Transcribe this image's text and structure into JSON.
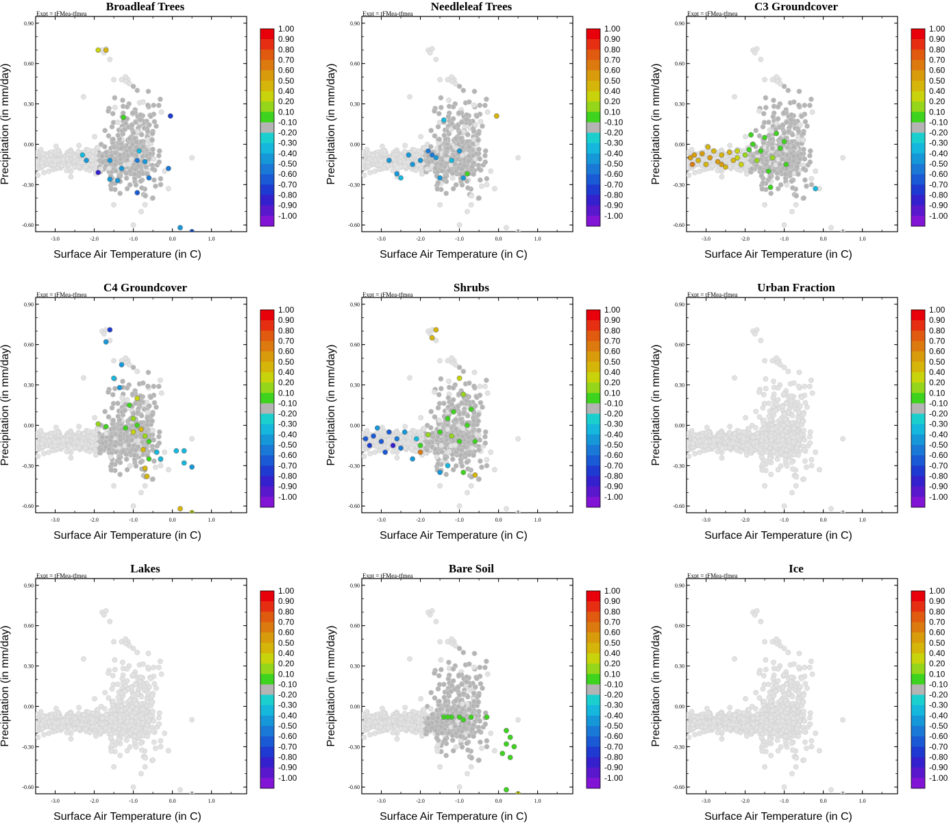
{
  "figure": {
    "experiment_label": "Expt = tFMea-tfmea",
    "xlabel": "Surface Air Temperature (in C)",
    "ylabel": "Precipitation (in mm/day)",
    "xticks": [
      "-3.0",
      "-2.0",
      "-1.0",
      "0.0",
      "1.0"
    ],
    "yticks": [
      "0.90",
      "0.60",
      "0.30",
      "0.00",
      "-0.30",
      "-0.60"
    ]
  },
  "colorbar": {
    "labels": [
      "1.00",
      "0.90",
      "0.80",
      "0.70",
      "0.60",
      "0.50",
      "0.40",
      "0.20",
      "0.10",
      "-0.10",
      "-0.20",
      "-0.30",
      "-0.40",
      "-0.50",
      "-0.60",
      "-0.70",
      "-0.80",
      "-0.90",
      "-1.00"
    ],
    "colors": [
      "#e8000b",
      "#e62e12",
      "#e05a10",
      "#dc7a10",
      "#d89b0c",
      "#d6b50a",
      "#c8d30c",
      "#95d61a",
      "#3ed31e",
      "#b4b4b4",
      "#1ccfcf",
      "#15b7dc",
      "#1597d8",
      "#1a79d6",
      "#1a5ad4",
      "#1e3ad0",
      "#3420cc",
      "#5a18cc",
      "#8214d6"
    ]
  },
  "palette": {
    "background_point": "#e2e2e2",
    "mid_point": "#b4b4b4"
  },
  "chart_data": [
    {
      "type": "scatter",
      "title": "Broadleaf Trees",
      "xlim": [
        -3.5,
        1.9
      ],
      "ylim": [
        -0.65,
        0.95
      ],
      "colored": [
        [
          -1.9,
          0.7,
          0.3
        ],
        [
          -1.7,
          0.7,
          0.4
        ],
        [
          -1.25,
          0.2,
          0.15
        ],
        [
          -0.05,
          0.21,
          -0.65
        ],
        [
          -2.3,
          -0.08,
          -0.25
        ],
        [
          -2.2,
          -0.12,
          -0.3
        ],
        [
          -1.6,
          -0.12,
          -0.3
        ],
        [
          -1.3,
          -0.18,
          -0.35
        ],
        [
          -1.6,
          -0.26,
          -0.3
        ],
        [
          -1.4,
          -0.27,
          -0.35
        ],
        [
          -0.9,
          -0.12,
          -0.4
        ],
        [
          -0.7,
          -0.13,
          -0.3
        ],
        [
          -0.6,
          -0.25,
          -0.45
        ],
        [
          -0.9,
          -0.36,
          -0.5
        ],
        [
          -0.1,
          -0.18,
          -0.4
        ],
        [
          -1.9,
          -0.21,
          -0.75
        ],
        [
          0.2,
          -0.62,
          -0.35
        ],
        [
          0.5,
          -0.65,
          -0.5
        ],
        [
          -0.85,
          -0.05,
          -0.25
        ]
      ]
    },
    {
      "type": "scatter",
      "title": "Needleleaf Trees",
      "xlim": [
        -3.5,
        1.9
      ],
      "ylim": [
        -0.65,
        0.95
      ],
      "colored": [
        [
          -0.05,
          0.21,
          0.4
        ],
        [
          -2.6,
          -0.22,
          -0.3
        ],
        [
          -2.5,
          -0.25,
          -0.25
        ],
        [
          -2.3,
          -0.08,
          -0.35
        ],
        [
          -2.0,
          -0.12,
          -0.3
        ],
        [
          -1.8,
          -0.05,
          -0.4
        ],
        [
          -1.6,
          -0.1,
          -0.3
        ],
        [
          -1.2,
          -0.12,
          -0.25
        ],
        [
          -1.4,
          0.18,
          -0.25
        ],
        [
          -1.5,
          -0.25,
          -0.3
        ],
        [
          -0.9,
          -0.25,
          -0.3
        ],
        [
          -0.8,
          -0.22,
          0.15
        ],
        [
          -2.2,
          -0.15,
          -0.3
        ],
        [
          -1.0,
          -0.05,
          -0.35
        ],
        [
          -1.7,
          -0.08,
          -0.45
        ],
        [
          -2.8,
          -0.12,
          -0.3
        ]
      ]
    },
    {
      "type": "scatter",
      "title": "C3 Groundcover",
      "xlim": [
        -3.5,
        1.9
      ],
      "ylim": [
        -0.65,
        0.95
      ],
      "colored": [
        [
          -3.4,
          -0.1,
          0.6
        ],
        [
          -3.3,
          -0.08,
          0.55
        ],
        [
          -3.2,
          -0.12,
          0.5
        ],
        [
          -3.1,
          -0.07,
          0.6
        ],
        [
          -3.0,
          -0.15,
          0.45
        ],
        [
          -2.9,
          -0.1,
          0.55
        ],
        [
          -2.8,
          -0.05,
          0.5
        ],
        [
          -2.7,
          -0.13,
          0.6
        ],
        [
          -2.6,
          -0.08,
          0.45
        ],
        [
          -2.5,
          -0.17,
          0.5
        ],
        [
          -2.4,
          -0.06,
          0.4
        ],
        [
          -2.3,
          -0.12,
          0.45
        ],
        [
          -2.2,
          -0.1,
          0.35
        ],
        [
          -2.1,
          -0.15,
          0.3
        ],
        [
          -2.0,
          -0.08,
          0.2
        ],
        [
          -1.9,
          -0.04,
          0.15
        ],
        [
          -1.8,
          0.0,
          0.1
        ],
        [
          -1.7,
          -0.12,
          0.2
        ],
        [
          -1.6,
          -0.05,
          0.15
        ],
        [
          -1.5,
          0.05,
          0.1
        ],
        [
          -1.4,
          -0.2,
          0.15
        ],
        [
          -1.3,
          -0.1,
          0.2
        ],
        [
          -1.2,
          0.08,
          0.1
        ],
        [
          -1.1,
          -0.03,
          0.15
        ],
        [
          -1.0,
          0.02,
          0.1
        ],
        [
          -0.95,
          -0.15,
          0.15
        ],
        [
          -0.2,
          -0.33,
          -0.25
        ],
        [
          -1.35,
          -0.32,
          0.15
        ],
        [
          -2.2,
          -0.05,
          0.35
        ],
        [
          -2.6,
          -0.15,
          0.55
        ],
        [
          -3.35,
          -0.15,
          0.7
        ],
        [
          -2.95,
          -0.02,
          0.4
        ],
        [
          -1.85,
          0.07,
          0.15
        ]
      ]
    },
    {
      "type": "scatter",
      "title": "C4 Groundcover",
      "xlim": [
        -3.5,
        1.9
      ],
      "ylim": [
        -0.65,
        0.95
      ],
      "colored": [
        [
          -1.6,
          0.71,
          -0.7
        ],
        [
          -1.7,
          0.62,
          -0.3
        ],
        [
          -1.3,
          0.45,
          -0.3
        ],
        [
          -1.5,
          0.35,
          -0.25
        ],
        [
          -1.35,
          0.28,
          -0.3
        ],
        [
          -0.9,
          0.2,
          0.3
        ],
        [
          -1.1,
          0.15,
          0.15
        ],
        [
          -1.0,
          0.05,
          0.2
        ],
        [
          -0.9,
          0.0,
          0.15
        ],
        [
          -0.8,
          -0.03,
          0.4
        ],
        [
          -0.7,
          -0.08,
          0.2
        ],
        [
          -0.6,
          -0.12,
          0.15
        ],
        [
          -1.2,
          -0.02,
          0.15
        ],
        [
          -1.0,
          -0.05,
          0.3
        ],
        [
          -0.75,
          -0.18,
          0.4
        ],
        [
          -0.6,
          -0.25,
          0.15
        ],
        [
          -0.4,
          -0.2,
          -0.25
        ],
        [
          -0.3,
          -0.25,
          -0.25
        ],
        [
          0.1,
          -0.19,
          -0.25
        ],
        [
          0.3,
          -0.19,
          -0.25
        ],
        [
          0.3,
          -0.28,
          -0.2
        ],
        [
          0.5,
          -0.31,
          -0.3
        ],
        [
          -0.7,
          -0.32,
          0.5
        ],
        [
          -0.65,
          -0.38,
          0.4
        ],
        [
          0.2,
          -0.62,
          0.4
        ],
        [
          0.5,
          -0.65,
          0.3
        ],
        [
          -1.7,
          -0.01,
          0.15
        ],
        [
          -1.9,
          0.01,
          0.2
        ]
      ]
    },
    {
      "type": "scatter",
      "title": "Shrubs",
      "xlim": [
        -3.5,
        1.9
      ],
      "ylim": [
        -0.65,
        0.95
      ],
      "colored": [
        [
          -1.6,
          0.71,
          0.4
        ],
        [
          -1.7,
          0.65,
          0.4
        ],
        [
          -1.0,
          0.35,
          0.3
        ],
        [
          -0.9,
          0.23,
          0.2
        ],
        [
          -0.7,
          0.12,
          0.15
        ],
        [
          -1.3,
          0.05,
          0.15
        ],
        [
          -0.8,
          0.0,
          0.15
        ],
        [
          -1.5,
          -0.05,
          0.15
        ],
        [
          -1.2,
          -0.08,
          0.2
        ],
        [
          -1.0,
          -0.12,
          0.15
        ],
        [
          -2.0,
          -0.15,
          0.15
        ],
        [
          -1.8,
          -0.07,
          0.2
        ],
        [
          -2.0,
          -0.2,
          0.7
        ],
        [
          -2.2,
          -0.25,
          -0.3
        ],
        [
          -2.6,
          -0.1,
          -0.4
        ],
        [
          -2.8,
          -0.05,
          -0.5
        ],
        [
          -3.0,
          -0.12,
          -0.6
        ],
        [
          -3.2,
          -0.08,
          -0.55
        ],
        [
          -3.4,
          -0.1,
          -0.6
        ],
        [
          -3.3,
          -0.15,
          -0.7
        ],
        [
          -2.9,
          -0.2,
          -0.5
        ],
        [
          -2.4,
          -0.05,
          -0.3
        ],
        [
          -2.1,
          -0.1,
          -0.25
        ],
        [
          -1.5,
          -0.35,
          -0.3
        ],
        [
          -1.3,
          -0.3,
          -0.25
        ],
        [
          -0.9,
          -0.35,
          0.15
        ],
        [
          -0.6,
          -0.37,
          0.4
        ],
        [
          -2.5,
          -0.17,
          -0.45
        ],
        [
          -3.1,
          -0.02,
          -0.3
        ],
        [
          -2.7,
          -0.15,
          -0.75
        ],
        [
          -0.6,
          -0.12,
          0.15
        ],
        [
          -1.15,
          0.1,
          0.15
        ]
      ]
    },
    {
      "type": "scatter",
      "title": "Urban Fraction",
      "xlim": [
        -3.5,
        1.9
      ],
      "ylim": [
        -0.65,
        0.95
      ],
      "colored": []
    },
    {
      "type": "scatter",
      "title": "Lakes",
      "xlim": [
        -3.5,
        1.9
      ],
      "ylim": [
        -0.65,
        0.95
      ],
      "colored": []
    },
    {
      "type": "scatter",
      "title": "Bare Soil",
      "xlim": [
        -3.5,
        1.9
      ],
      "ylim": [
        -0.65,
        0.95
      ],
      "colored": [
        [
          -1.4,
          -0.08,
          0.15
        ],
        [
          -1.2,
          -0.08,
          0.15
        ],
        [
          -1.0,
          -0.08,
          0.15
        ],
        [
          -0.9,
          -0.1,
          0.15
        ],
        [
          -0.7,
          -0.08,
          0.15
        ],
        [
          -1.3,
          -0.08,
          0.15
        ],
        [
          -0.3,
          -0.08,
          0.15
        ],
        [
          0.2,
          -0.18,
          0.15
        ],
        [
          0.3,
          -0.23,
          0.15
        ],
        [
          0.2,
          -0.28,
          0.15
        ],
        [
          0.4,
          -0.3,
          0.15
        ],
        [
          0.1,
          -0.35,
          0.15
        ],
        [
          0.3,
          -0.38,
          0.15
        ],
        [
          0.2,
          -0.62,
          0.15
        ],
        [
          0.5,
          -0.65,
          0.3
        ]
      ]
    },
    {
      "type": "scatter",
      "title": "Ice",
      "xlim": [
        -3.5,
        1.9
      ],
      "ylim": [
        -0.65,
        0.95
      ],
      "colored": []
    }
  ]
}
